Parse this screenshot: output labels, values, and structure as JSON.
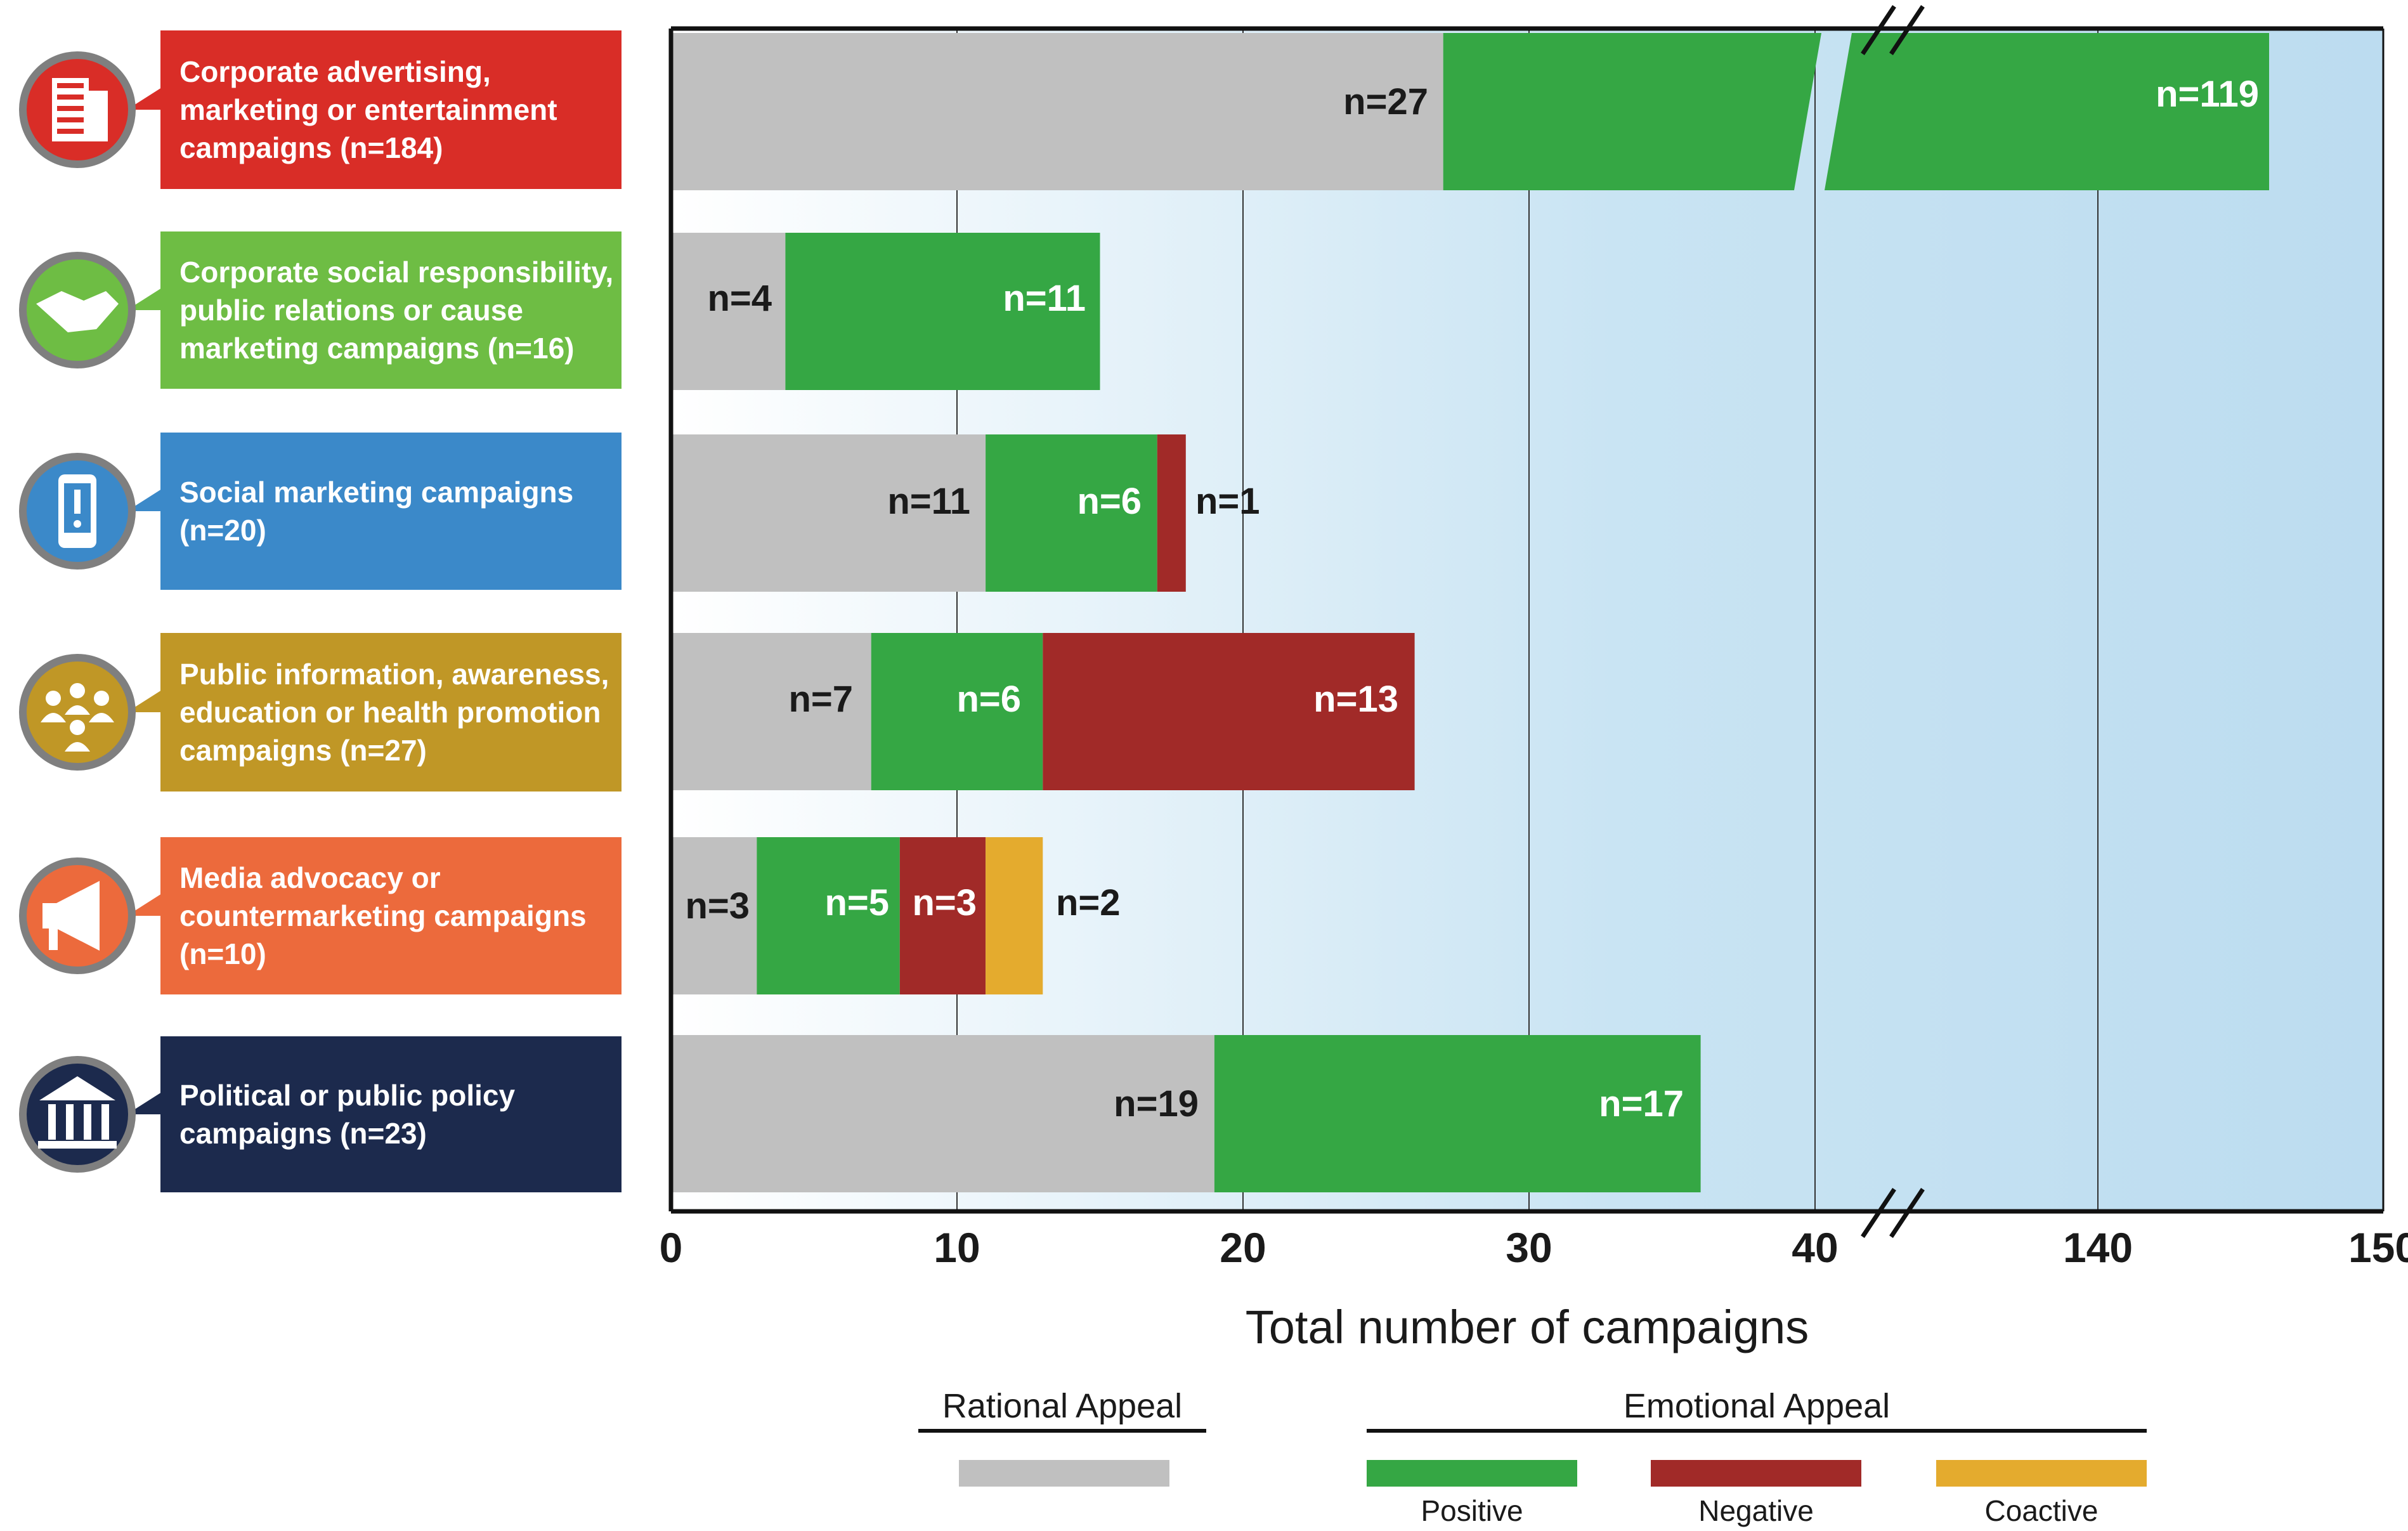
{
  "chart_data": {
    "type": "bar",
    "orientation": "horizontal",
    "stacked": true,
    "axis_break": "between 40 and 140",
    "xlabel": "Total number of campaigns",
    "x_ticks": [
      "0",
      "10",
      "20",
      "30",
      "40",
      "140",
      "150"
    ],
    "categories": [
      {
        "lines": [
          "Corporate advertising,",
          "marketing or entertainment",
          "campaigns (n=184)"
        ],
        "color": "#d92d27",
        "icon": "building-icon"
      },
      {
        "lines": [
          "Corporate social responsibility,",
          "public relations or cause",
          "marketing campaigns (n=16)"
        ],
        "color": "#6ebd44",
        "icon": "handshake-icon"
      },
      {
        "lines": [
          "Social marketing campaigns",
          " (n=20)"
        ],
        "color": "#3b89c9",
        "icon": "smartphone-alert-icon"
      },
      {
        "lines": [
          "Public information, awareness,",
          "education or health promotion",
          "campaigns  (n=27)"
        ],
        "color": "#c09726",
        "icon": "people-group-icon"
      },
      {
        "lines": [
          "Media advocacy or",
          "countermarketing campaigns",
          " (n=10)"
        ],
        "color": "#ec6a3c",
        "icon": "megaphone-icon"
      },
      {
        "lines": [
          "Political or public policy",
          "campaigns  (n=23)"
        ],
        "color": "#1c2a4d",
        "icon": "government-building-icon"
      }
    ],
    "series": [
      {
        "name": "Rational Appeal",
        "group": "Rational Appeal",
        "color": "#c0c0c0",
        "values": [
          27,
          4,
          11,
          7,
          3,
          19
        ],
        "labels": [
          "n=27",
          "n=4",
          "n=11",
          "n=7",
          "n=3",
          "n=19"
        ]
      },
      {
        "name": "Positive",
        "group": "Emotional Appeal",
        "color": "#35a744",
        "values": [
          119,
          11,
          6,
          6,
          5,
          17
        ],
        "labels": [
          "n=119",
          "n=11",
          "n=6",
          "n=6",
          "n=5",
          "n=17"
        ]
      },
      {
        "name": "Negative",
        "group": "Emotional Appeal",
        "color": "#a12a28",
        "values": [
          0,
          0,
          1,
          13,
          3,
          0
        ],
        "labels": [
          "",
          "",
          "n=1",
          "n=13",
          "n=3",
          ""
        ]
      },
      {
        "name": "Coactive",
        "group": "Emotional Appeal",
        "color": "#e4ab2e",
        "values": [
          0,
          0,
          0,
          0,
          2,
          0
        ],
        "labels": [
          "",
          "",
          "",
          "",
          "n=2",
          ""
        ]
      }
    ],
    "legend": {
      "placement": "bottom",
      "group_titles": [
        "Rational Appeal",
        "Emotional Appeal"
      ],
      "entries": [
        {
          "group": "Rational Appeal",
          "name": "",
          "color": "#c0c0c0"
        },
        {
          "group": "Emotional Appeal",
          "name": "Positive",
          "color": "#35a744"
        },
        {
          "group": "Emotional Appeal",
          "name": "Negative",
          "color": "#a12a28"
        },
        {
          "group": "Emotional Appeal",
          "name": "Coactive",
          "color": "#e4ab2e"
        }
      ]
    }
  }
}
